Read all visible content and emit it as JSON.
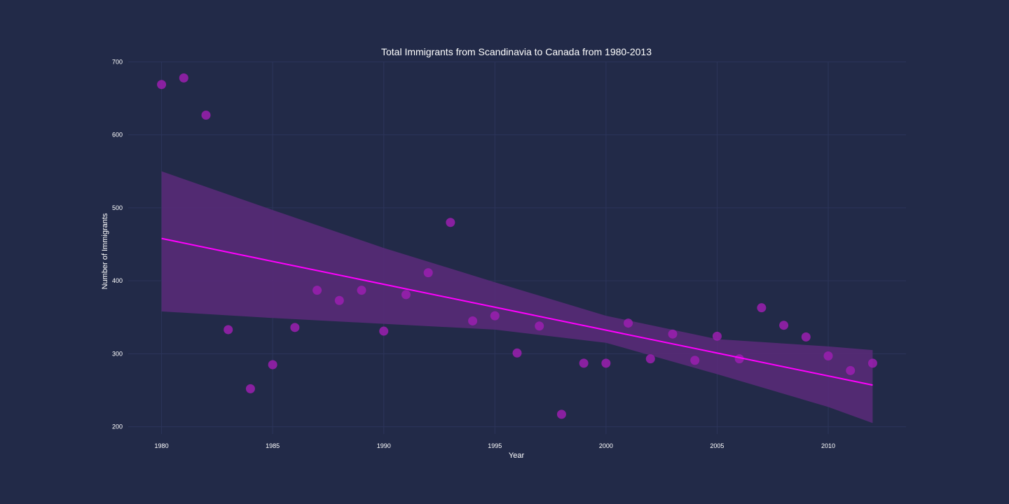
{
  "chart_data": {
    "type": "scatter",
    "title": "Total Immigrants from Scandinavia to Canada from 1980-2013",
    "xlabel": "Year",
    "ylabel": "Number of Immigrants",
    "xlim": [
      1978.5,
      2013.5
    ],
    "ylim": [
      190,
      710
    ],
    "xticks": [
      1980,
      1985,
      1990,
      1995,
      2000,
      2005,
      2010
    ],
    "yticks": [
      200,
      300,
      400,
      500,
      600,
      700
    ],
    "grid": true,
    "colors": {
      "background": "#222a48",
      "points": "#9b1fb0",
      "regression_line": "#ff00ff",
      "confidence_band": "#5a2a7a"
    },
    "points": {
      "x": [
        1980,
        1981,
        1982,
        1983,
        1984,
        1985,
        1986,
        1987,
        1988,
        1989,
        1990,
        1991,
        1992,
        1993,
        1994,
        1995,
        1996,
        1997,
        1998,
        1999,
        2000,
        2001,
        2002,
        2003,
        2004,
        2005,
        2006,
        2007,
        2008,
        2009,
        2010,
        2011,
        2012
      ],
      "y": [
        669,
        678,
        627,
        333,
        252,
        285,
        336,
        387,
        373,
        387,
        331,
        381,
        411,
        480,
        345,
        352,
        301,
        338,
        217,
        287,
        287,
        342,
        293,
        327,
        291,
        324,
        293,
        363,
        339,
        323,
        297,
        277,
        287
      ]
    },
    "regression": {
      "x": [
        1980,
        2012
      ],
      "y": [
        458,
        257
      ]
    },
    "confidence_band": {
      "x": [
        1980,
        1985,
        1990,
        1995,
        2000,
        2005,
        2010,
        2012
      ],
      "upper": [
        550,
        497,
        445,
        398,
        352,
        320,
        310,
        305
      ],
      "lower": [
        358,
        349,
        341,
        333,
        315,
        272,
        227,
        205
      ]
    }
  }
}
